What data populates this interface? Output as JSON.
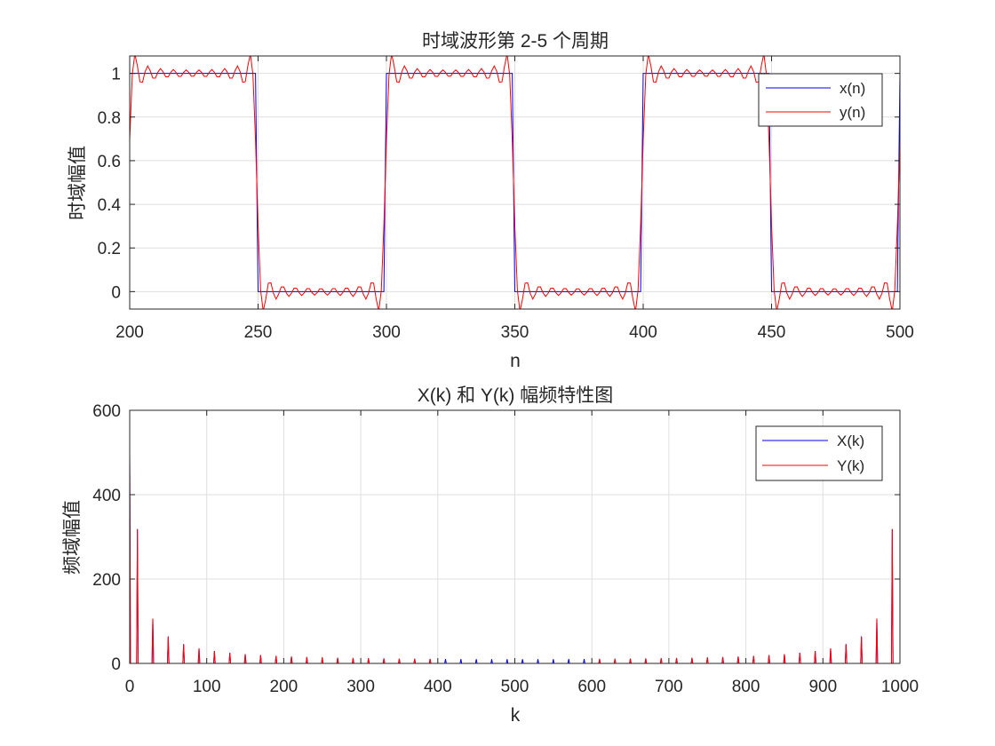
{
  "chart_data": [
    {
      "type": "line",
      "title": "时域波形第 2-5 个周期",
      "xlabel": "n",
      "ylabel": "时域幅值",
      "xlim": [
        200,
        500
      ],
      "ylim": [
        -0.08,
        1.08
      ],
      "xticks": [
        200,
        250,
        300,
        350,
        400,
        450,
        500
      ],
      "yticks": [
        0,
        0.2,
        0.4,
        0.6,
        0.8,
        1
      ],
      "ytick_labels": [
        "0",
        "0.2",
        "0.4",
        "0.6",
        "0.8",
        "1"
      ],
      "grid": true,
      "legend_position": "top-right",
      "period": 100,
      "duty_high": 50,
      "series": [
        {
          "name": "x(n)",
          "color": "#0000ff",
          "form": "square wave 0/1, high for n mod 100 in [0,50)"
        },
        {
          "name": "y(n)",
          "color": "#ff0000",
          "form": "band-limited square wave with Gibbs ringing, overshoot ~1.09 / -0.09"
        }
      ]
    },
    {
      "type": "line",
      "title": "X(k) 和 Y(k) 幅频特性图",
      "xlabel": "k",
      "ylabel": "频域幅值",
      "xlim": [
        0,
        1000
      ],
      "ylim": [
        0,
        600
      ],
      "xticks": [
        0,
        100,
        200,
        300,
        400,
        500,
        600,
        700,
        800,
        900,
        1000
      ],
      "yticks": [
        0,
        200,
        400,
        600
      ],
      "grid": true,
      "legend_position": "top-right",
      "N": 1000,
      "dc_value": 500,
      "harmonic_spacing": 20,
      "series": [
        {
          "name": "X(k)",
          "color": "#0000ff",
          "form": "odd harmonics at k=10,30,50,... with magnitude 10/sin(pi*k/1000)"
        },
        {
          "name": "Y(k)",
          "color": "#ff0000",
          "form": "same as X(k) but zero for 400<k<600"
        }
      ],
      "peaks_Y": [
        {
          "k": 0,
          "value": 500
        },
        {
          "k": 10,
          "value": 318
        },
        {
          "k": 30,
          "value": 106
        },
        {
          "k": 50,
          "value": 64
        },
        {
          "k": 70,
          "value": 46
        },
        {
          "k": 90,
          "value": 36
        },
        {
          "k": 990,
          "value": 318
        },
        {
          "k": 970,
          "value": 106
        },
        {
          "k": 950,
          "value": 64
        }
      ]
    }
  ]
}
